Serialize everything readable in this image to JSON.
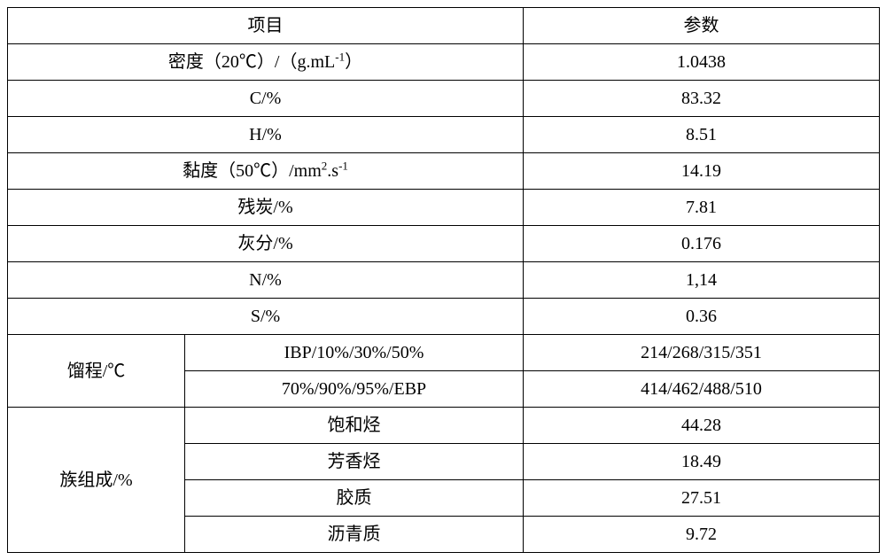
{
  "table": {
    "border_color": "#000000",
    "background_color": "#ffffff",
    "text_color": "#000000",
    "font_size": 20,
    "header": {
      "item": "项目",
      "param": "参数"
    },
    "rows": [
      {
        "label_html": "密度（20℃）/（g.mL<sup>-1</sup>）",
        "value": "1.0438"
      },
      {
        "label_html": "C/%",
        "value": "83.32"
      },
      {
        "label_html": "H/%",
        "value": "8.51"
      },
      {
        "label_html": "黏度（50℃）/mm<sup>2</sup>.s<sup>-1</sup>",
        "value": "14.19"
      },
      {
        "label_html": "残炭/%",
        "value": "7.81"
      },
      {
        "label_html": "灰分/%",
        "value": "0.176"
      },
      {
        "label_html": "N/%",
        "value": "1,14"
      },
      {
        "label_html": "S/%",
        "value": "0.36"
      }
    ],
    "distillation": {
      "label": "馏程/℃",
      "sub": [
        {
          "label": "IBP/10%/30%/50%",
          "value": "214/268/315/351"
        },
        {
          "label": "70%/90%/95%/EBP",
          "value": "414/462/488/510"
        }
      ]
    },
    "composition": {
      "label": "族组成/%",
      "sub": [
        {
          "label": "饱和烃",
          "value": "44.28"
        },
        {
          "label": "芳香烃",
          "value": "18.49"
        },
        {
          "label": "胶质",
          "value": "27.51"
        },
        {
          "label": "沥青质",
          "value": "9.72"
        }
      ]
    }
  }
}
